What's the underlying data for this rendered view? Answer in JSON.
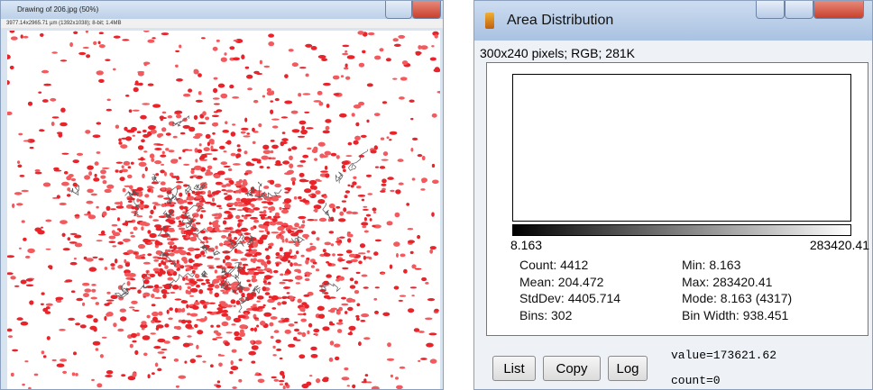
{
  "image_window": {
    "title": "Drawing of 206.jpg (50%)",
    "info": "3977.14x2965.71 µm (1392x1038); 8-bit; 1.4MB"
  },
  "histogram_window": {
    "title": "Area Distribution",
    "info": "300x240 pixels; RGB; 281K",
    "x_min_label": "8.163",
    "x_max_label": "283420.41",
    "stats": [
      "Count: 4412",
      "Min: 8.163",
      "Mean: 204.472",
      "Max: 283420.41",
      "StdDev: 4405.714",
      "Mode: 8.163 (4317)",
      "Bins: 302",
      "Bin Width: 938.451"
    ],
    "buttons": [
      "List",
      "Copy",
      "Log"
    ],
    "value_readout": "value=173621.62",
    "count_readout": "count=0"
  }
}
